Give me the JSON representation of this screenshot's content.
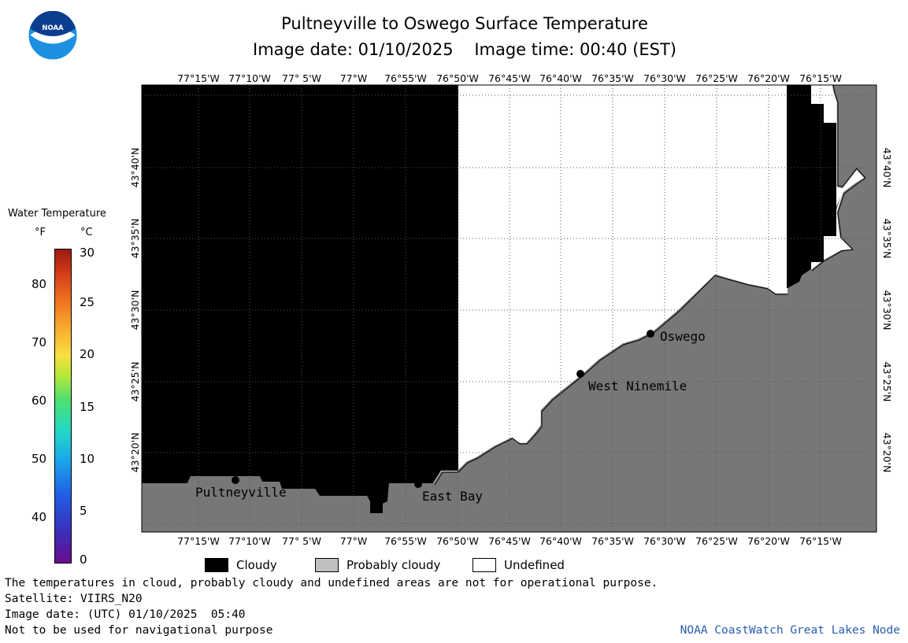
{
  "title": "Pultneyville to Oswego Surface Temperature",
  "subtitle": "Image date: 01/10/2025    Image time: 00:40 (EST)",
  "logo_text": "NOAA",
  "longitude_labels": [
    "77°15'W",
    "77°10'W",
    "77° 5'W",
    "77°W",
    "76°55'W",
    "76°50'W",
    "76°45'W",
    "76°40'W",
    "76°35'W",
    "76°30'W",
    "76°25'W",
    "76°20'W",
    "76°15'W"
  ],
  "latitude_labels": [
    "43°40'N",
    "43°35'N",
    "43°30'N",
    "43°25'N",
    "43°20'N"
  ],
  "places": [
    {
      "name": "Pultneyville"
    },
    {
      "name": "East Bay"
    },
    {
      "name": "West Ninemile"
    },
    {
      "name": "Oswego"
    }
  ],
  "legend": {
    "cloudy": "Cloudy",
    "probably_cloudy": "Probably cloudy",
    "undefined": "Undefined",
    "colors": {
      "cloudy": "#000000",
      "probably_cloudy": "#bfbfbf",
      "undefined": "#ffffff",
      "land": "#777777"
    }
  },
  "colorbar": {
    "title": "Water Temperature",
    "unit_f": "°F",
    "unit_c": "°C",
    "f_ticks": [
      "80",
      "70",
      "60",
      "50",
      "40"
    ],
    "c_ticks": [
      "30",
      "25",
      "20",
      "15",
      "10",
      "5",
      "0"
    ]
  },
  "footer": {
    "note": "The temperatures in cloud, probably cloudy and undefined areas are not for operational purpose.",
    "satellite": "Satellite: VIIRS_N20",
    "utc_date": "Image date: (UTC) 01/10/2025  05:40",
    "warning": "Not to be used for navigational purpose",
    "credit": "NOAA CoastWatch Great Lakes Node"
  }
}
